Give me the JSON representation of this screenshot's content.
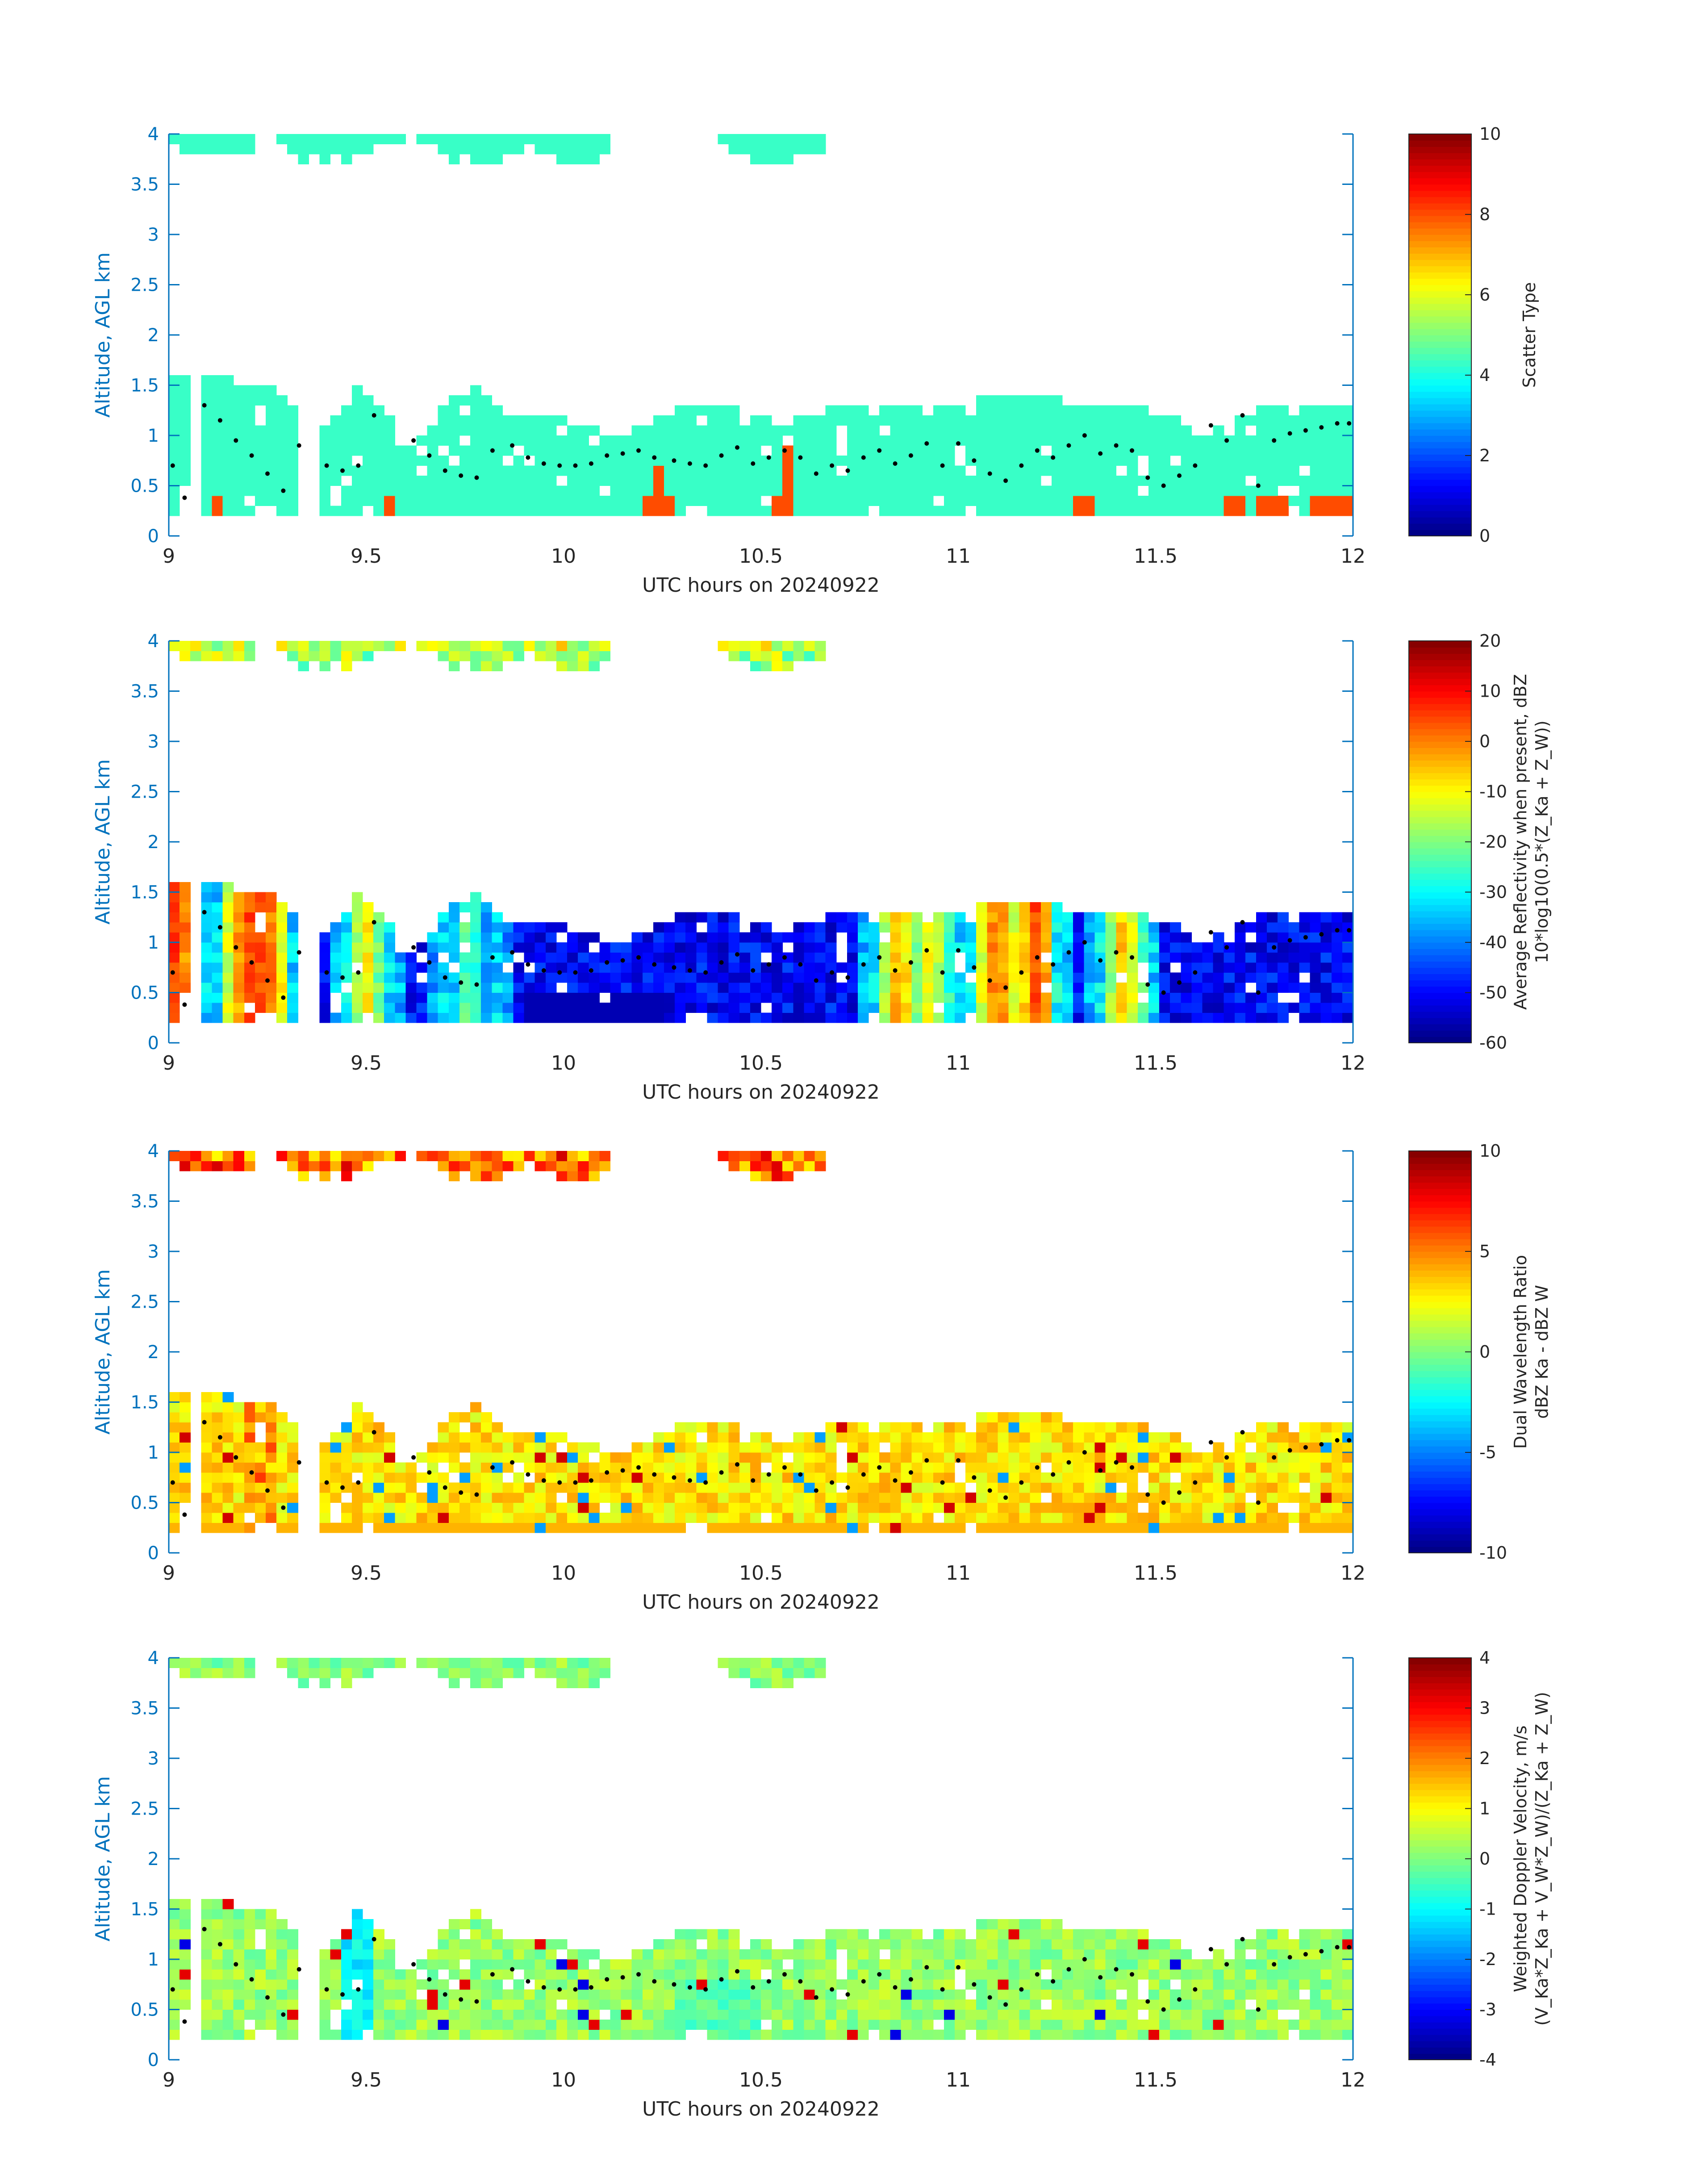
{
  "figure": {
    "background": "#ffffff",
    "axis_color": "#0072BD",
    "text_color": "#262626"
  },
  "chart_data": [
    {
      "type": "heatmap",
      "xlabel": "UTC hours on 20240922",
      "ylabel": "Altitude, AGL km",
      "xlim": [
        9,
        12
      ],
      "ylim": [
        0,
        4
      ],
      "xticks": [
        "9",
        "9.5",
        "10",
        "10.5",
        "11",
        "11.5",
        "12"
      ],
      "yticks": [
        "0",
        "0.5",
        "1",
        "1.5",
        "2",
        "2.5",
        "3",
        "3.5",
        "4"
      ],
      "colorbar": {
        "label": "Scatter Type",
        "range": [
          0,
          10
        ],
        "ticks": [
          "0",
          "2",
          "4",
          "6",
          "8",
          "10"
        ]
      },
      "colormap": "jet",
      "field": "scatter",
      "grid": false
    },
    {
      "type": "heatmap",
      "xlabel": "UTC hours on 20240922",
      "ylabel": "Altitude, AGL km",
      "xlim": [
        9,
        12
      ],
      "ylim": [
        0,
        4
      ],
      "xticks": [
        "9",
        "9.5",
        "10",
        "10.5",
        "11",
        "11.5",
        "12"
      ],
      "yticks": [
        "0",
        "0.5",
        "1",
        "1.5",
        "2",
        "2.5",
        "3",
        "3.5",
        "4"
      ],
      "colorbar": {
        "label": "Average Reflectivity when present, dBZ",
        "label2": "10*log10(0.5*(Z_Ka + Z_W))",
        "range": [
          -60,
          20
        ],
        "ticks": [
          "-60",
          "-50",
          "-40",
          "-30",
          "-20",
          "-10",
          "0",
          "10",
          "20"
        ]
      },
      "colormap": "jet",
      "field": "reflectivity",
      "grid": false
    },
    {
      "type": "heatmap",
      "xlabel": "UTC hours on 20240922",
      "ylabel": "Altitude, AGL km",
      "xlim": [
        9,
        12
      ],
      "ylim": [
        0,
        4
      ],
      "xticks": [
        "9",
        "9.5",
        "10",
        "10.5",
        "11",
        "11.5",
        "12"
      ],
      "yticks": [
        "0",
        "0.5",
        "1",
        "1.5",
        "2",
        "2.5",
        "3",
        "3.5",
        "4"
      ],
      "colorbar": {
        "label": "Dual Wavelength Ratio",
        "label2": "dBZ Ka - dBZ W",
        "range": [
          -10,
          10
        ],
        "ticks": [
          "-10",
          "-5",
          "0",
          "5",
          "10"
        ]
      },
      "colormap": "jet",
      "field": "dwr",
      "grid": false
    },
    {
      "type": "heatmap",
      "xlabel": "UTC hours on 20240922",
      "ylabel": "Altitude, AGL km",
      "xlim": [
        9,
        12
      ],
      "ylim": [
        0,
        4
      ],
      "xticks": [
        "9",
        "9.5",
        "10",
        "10.5",
        "11",
        "11.5",
        "12"
      ],
      "yticks": [
        "0",
        "0.5",
        "1",
        "1.5",
        "2",
        "2.5",
        "3",
        "3.5",
        "4"
      ],
      "colorbar": {
        "label": "Weighted Doppler Velocity, m/s",
        "label2": "(V_Ka*Z_Ka + V_W*Z_W)/(Z_Ka + Z_W)",
        "range": [
          -4,
          4
        ],
        "ticks": [
          "-4",
          "-3",
          "-2",
          "-1",
          "0",
          "1",
          "2",
          "3",
          "4"
        ]
      },
      "colormap": "jet",
      "field": "velocity",
      "grid": false
    }
  ],
  "cloud_layers": {
    "upper_segments": [
      {
        "x_start": 9.0,
        "x_end": 9.23,
        "base_km": 3.85,
        "top_km": 4.0
      },
      {
        "x_start": 9.27,
        "x_end": 9.59,
        "base_km": 3.62,
        "top_km": 4.0
      },
      {
        "x_start": 9.63,
        "x_end": 10.13,
        "base_km": 3.62,
        "top_km": 4.0
      },
      {
        "x_start": 10.4,
        "x_end": 10.65,
        "base_km": 3.62,
        "top_km": 4.0
      }
    ],
    "lower_layer": {
      "x_start": 9.0,
      "x_end": 12.0,
      "base_km": 0.18,
      "top_km": 1.6
    }
  },
  "cloud_base_points": {
    "x": [
      9.01,
      9.04,
      9.09,
      9.13,
      9.17,
      9.21,
      9.25,
      9.29,
      9.33,
      9.4,
      9.44,
      9.48,
      9.52,
      9.62,
      9.66,
      9.7,
      9.74,
      9.78,
      9.82,
      9.87,
      9.91,
      9.95,
      9.99,
      10.03,
      10.07,
      10.11,
      10.15,
      10.19,
      10.23,
      10.28,
      10.32,
      10.36,
      10.4,
      10.44,
      10.48,
      10.52,
      10.56,
      10.6,
      10.64,
      10.68,
      10.72,
      10.76,
      10.8,
      10.84,
      10.88,
      10.92,
      10.96,
      11.0,
      11.04,
      11.08,
      11.12,
      11.16,
      11.2,
      11.24,
      11.28,
      11.32,
      11.36,
      11.4,
      11.44,
      11.48,
      11.52,
      11.56,
      11.6,
      11.64,
      11.68,
      11.72,
      11.76,
      11.8,
      11.84,
      11.88,
      11.92,
      11.96,
      11.99
    ],
    "y": [
      0.7,
      0.38,
      1.3,
      1.15,
      0.95,
      0.8,
      0.62,
      0.45,
      0.9,
      0.7,
      0.65,
      0.7,
      1.2,
      0.95,
      0.8,
      0.65,
      0.6,
      0.58,
      0.85,
      0.9,
      0.78,
      0.72,
      0.7,
      0.7,
      0.72,
      0.8,
      0.82,
      0.85,
      0.78,
      0.75,
      0.72,
      0.7,
      0.8,
      0.88,
      0.72,
      0.78,
      0.85,
      0.78,
      0.62,
      0.7,
      0.65,
      0.78,
      0.85,
      0.72,
      0.8,
      0.92,
      0.7,
      0.92,
      0.75,
      0.62,
      0.55,
      0.7,
      0.85,
      0.78,
      0.9,
      1.0,
      0.82,
      0.9,
      0.85,
      0.58,
      0.5,
      0.6,
      0.7,
      1.1,
      0.95,
      1.2,
      0.5,
      0.95,
      1.02,
      1.05,
      1.08,
      1.12,
      1.12
    ]
  }
}
